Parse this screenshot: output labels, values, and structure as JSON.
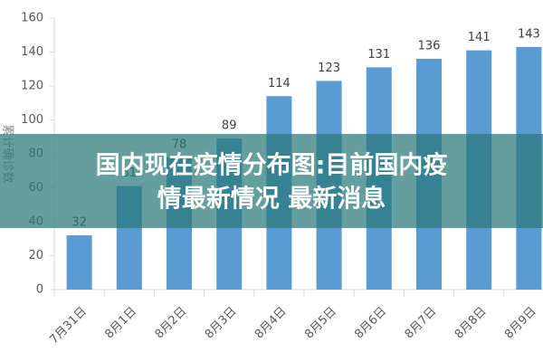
{
  "chart_data": {
    "type": "bar",
    "y_label": "累计确诊数",
    "categories": [
      "7月31日",
      "8月1日",
      "8月2日",
      "8月3日",
      "8月4日",
      "8月5日",
      "8月6日",
      "8月7日",
      "8月8日",
      "8月9日"
    ],
    "values": [
      32,
      61,
      78,
      89,
      114,
      123,
      131,
      136,
      141,
      143
    ],
    "color": "#5b9bd5",
    "ylim": [
      0,
      160
    ],
    "yticks": [
      0,
      20,
      40,
      60,
      80,
      100,
      120,
      140,
      160
    ],
    "grid": false
  },
  "banner": {
    "lines": [
      "国内现在疫情分布图:目前国内疫",
      "情最新情况 最新消息"
    ]
  }
}
